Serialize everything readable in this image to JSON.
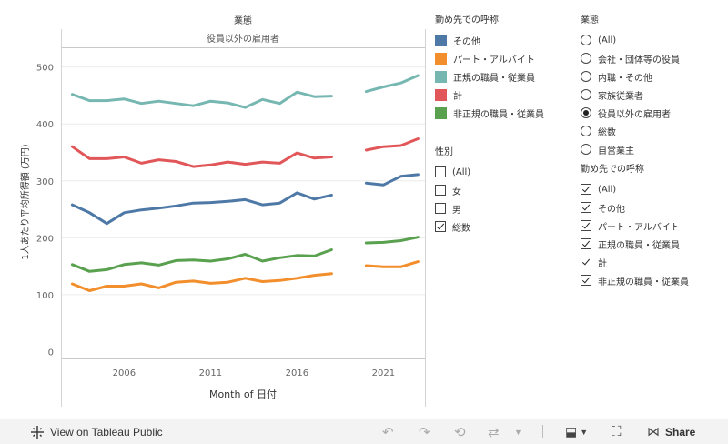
{
  "chart_data": {
    "type": "line",
    "title": "業態",
    "panel_label": "役員以外の雇用者",
    "xlabel": "Month of 日付",
    "ylabel": "1人あたり平均所得額 (万円)",
    "x_ticks": [
      "2006",
      "2011",
      "2016",
      "2021"
    ],
    "y_ticks": [
      0,
      100,
      200,
      300,
      400,
      500
    ],
    "ylim": [
      -12,
      533
    ],
    "xlim": [
      2002.4,
      2023.4
    ],
    "x": [
      2003,
      2004,
      2005,
      2006,
      2007,
      2008,
      2009,
      2010,
      2011,
      2012,
      2013,
      2014,
      2015,
      2016,
      2017,
      2018,
      2019,
      2020,
      2021,
      2022,
      2023
    ],
    "series": [
      {
        "name": "その他",
        "color": "#4e79a7",
        "values": [
          258,
          244,
          225,
          244,
          249,
          252,
          256,
          261,
          262,
          264,
          267,
          258,
          261,
          279,
          268,
          275,
          null,
          296,
          293,
          308,
          311
        ]
      },
      {
        "name": "パート・アルバイト",
        "color": "#f28e2b",
        "values": [
          119,
          107,
          115,
          115,
          119,
          112,
          122,
          124,
          120,
          122,
          129,
          123,
          125,
          129,
          134,
          137,
          null,
          151,
          149,
          149,
          158
        ]
      },
      {
        "name": "正規の職員・従業員",
        "color": "#76b7b2",
        "values": [
          452,
          441,
          441,
          444,
          436,
          440,
          436,
          432,
          440,
          437,
          429,
          443,
          436,
          456,
          448,
          449,
          null,
          457,
          465,
          472,
          485
        ]
      },
      {
        "name": "計",
        "color": "#e15759",
        "values": [
          360,
          339,
          339,
          342,
          331,
          337,
          334,
          325,
          328,
          333,
          329,
          333,
          331,
          349,
          340,
          342,
          null,
          354,
          360,
          362,
          374
        ]
      },
      {
        "name": "非正規の職員・従業員",
        "color": "#59a14f",
        "values": [
          153,
          141,
          144,
          153,
          156,
          152,
          160,
          161,
          159,
          163,
          171,
          159,
          165,
          169,
          168,
          179,
          null,
          191,
          192,
          195,
          201
        ]
      }
    ],
    "grid": true,
    "legend_position": "right"
  },
  "legends": {
    "color_title": "勤め先での呼称",
    "color_items": [
      "その他",
      "パート・アルバイト",
      "正規の職員・従業員",
      "計",
      "非正規の職員・従業員"
    ],
    "sex_title": "性別",
    "sex_items": [
      {
        "label": "(All)",
        "checked": false
      },
      {
        "label": "女",
        "checked": false
      },
      {
        "label": "男",
        "checked": false
      },
      {
        "label": "総数",
        "checked": true
      }
    ],
    "industry_title": "業態",
    "industry_items": [
      {
        "label": "(All)",
        "selected": false
      },
      {
        "label": "会社・団体等の役員",
        "selected": false
      },
      {
        "label": "内職・その他",
        "selected": false
      },
      {
        "label": "家族従業者",
        "selected": false
      },
      {
        "label": "役員以外の雇用者",
        "selected": true
      },
      {
        "label": "総数",
        "selected": false
      },
      {
        "label": "自営業主",
        "selected": false
      }
    ],
    "employ_title": "勤め先での呼称",
    "employ_items": [
      {
        "label": "(All)",
        "checked": true
      },
      {
        "label": "その他",
        "checked": true
      },
      {
        "label": "パート・アルバイト",
        "checked": true
      },
      {
        "label": "正規の職員・従業員",
        "checked": true
      },
      {
        "label": "計",
        "checked": true
      },
      {
        "label": "非正規の職員・従業員",
        "checked": true
      }
    ]
  },
  "toolbar": {
    "view_label": "View on Tableau Public",
    "share_label": "Share",
    "icons": [
      "tableau-logo-icon",
      "undo-icon",
      "redo-icon",
      "revert-icon",
      "refresh-icon",
      "download-icon",
      "fullscreen-icon",
      "share-icon"
    ]
  }
}
